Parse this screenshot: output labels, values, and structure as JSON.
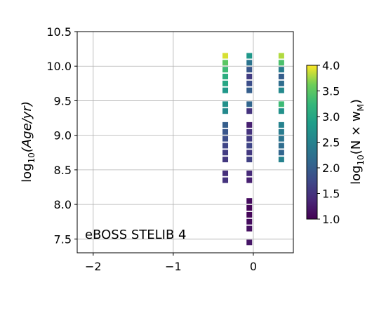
{
  "chart_data": {
    "type": "heatmap",
    "annotation": "eBOSS STELIB 4",
    "xlabel": "",
    "ylabel_parts": {
      "prefix": "log",
      "sub": "10",
      "body": "(Age/yr)"
    },
    "xlim": [
      -2.2,
      0.5
    ],
    "ylim": [
      7.3,
      10.5
    ],
    "x_ticks": [
      -2,
      -1,
      0
    ],
    "x_tick_labels": [
      "−2",
      "−1",
      "0"
    ],
    "y_ticks": [
      7.5,
      8.0,
      8.5,
      9.0,
      9.5,
      10.0,
      10.5
    ],
    "y_tick_labels": [
      "7.5",
      "8.0",
      "8.5",
      "9.0",
      "9.5",
      "10.0",
      "10.5"
    ],
    "grid": true,
    "colormap": "viridis",
    "colorbar": {
      "label_parts": {
        "prefix": "log",
        "sub": "10",
        "body": "(N × w",
        "body_sub": "M",
        "end": ")"
      },
      "range": [
        1.0,
        4.0
      ],
      "ticks": [
        1.0,
        1.5,
        2.0,
        2.5,
        3.0,
        3.5,
        4.0
      ],
      "tick_labels": [
        "1.0",
        "1.5",
        "2.0",
        "2.5",
        "3.0",
        "3.5",
        "4.0"
      ]
    },
    "series": [
      {
        "x": -0.35,
        "points": [
          {
            "y": 10.15,
            "v": 3.9
          },
          {
            "y": 10.05,
            "v": 3.5
          },
          {
            "y": 9.95,
            "v": 3.3
          },
          {
            "y": 9.85,
            "v": 3.1
          },
          {
            "y": 9.75,
            "v": 3.0
          },
          {
            "y": 9.65,
            "v": 2.8
          },
          {
            "y": 9.45,
            "v": 2.7
          },
          {
            "y": 9.35,
            "v": 2.6
          },
          {
            "y": 9.15,
            "v": 2.0
          },
          {
            "y": 9.05,
            "v": 1.9
          },
          {
            "y": 8.95,
            "v": 1.8
          },
          {
            "y": 8.85,
            "v": 1.7
          },
          {
            "y": 8.75,
            "v": 1.6
          },
          {
            "y": 8.65,
            "v": 1.55
          },
          {
            "y": 8.45,
            "v": 1.45
          },
          {
            "y": 8.35,
            "v": 1.5
          }
        ]
      },
      {
        "x": -0.05,
        "points": [
          {
            "y": 10.15,
            "v": 2.8
          },
          {
            "y": 10.05,
            "v": 2.3
          },
          {
            "y": 9.95,
            "v": 1.9
          },
          {
            "y": 9.85,
            "v": 1.6
          },
          {
            "y": 9.75,
            "v": 1.8
          },
          {
            "y": 9.65,
            "v": 2.0
          },
          {
            "y": 9.45,
            "v": 2.1
          },
          {
            "y": 9.35,
            "v": 1.5
          },
          {
            "y": 9.15,
            "v": 1.3
          },
          {
            "y": 9.05,
            "v": 1.5
          },
          {
            "y": 8.95,
            "v": 1.6
          },
          {
            "y": 8.85,
            "v": 1.7
          },
          {
            "y": 8.75,
            "v": 1.55
          },
          {
            "y": 8.65,
            "v": 1.65
          },
          {
            "y": 8.45,
            "v": 1.4
          },
          {
            "y": 8.35,
            "v": 1.3
          },
          {
            "y": 8.05,
            "v": 1.1
          },
          {
            "y": 7.95,
            "v": 1.05
          },
          {
            "y": 7.85,
            "v": 1.05
          },
          {
            "y": 7.75,
            "v": 1.1
          },
          {
            "y": 7.65,
            "v": 1.15
          },
          {
            "y": 7.45,
            "v": 1.2
          }
        ]
      },
      {
        "x": 0.35,
        "points": [
          {
            "y": 10.15,
            "v": 3.8
          },
          {
            "y": 10.05,
            "v": 3.4
          },
          {
            "y": 9.95,
            "v": 2.4
          },
          {
            "y": 9.85,
            "v": 2.0
          },
          {
            "y": 9.75,
            "v": 2.2
          },
          {
            "y": 9.65,
            "v": 2.6
          },
          {
            "y": 9.45,
            "v": 3.3
          },
          {
            "y": 9.35,
            "v": 2.7
          },
          {
            "y": 9.15,
            "v": 2.5
          },
          {
            "y": 9.05,
            "v": 2.4
          },
          {
            "y": 8.95,
            "v": 2.3
          },
          {
            "y": 8.85,
            "v": 2.2
          },
          {
            "y": 8.75,
            "v": 2.1
          },
          {
            "y": 8.65,
            "v": 2.5
          }
        ]
      }
    ]
  }
}
